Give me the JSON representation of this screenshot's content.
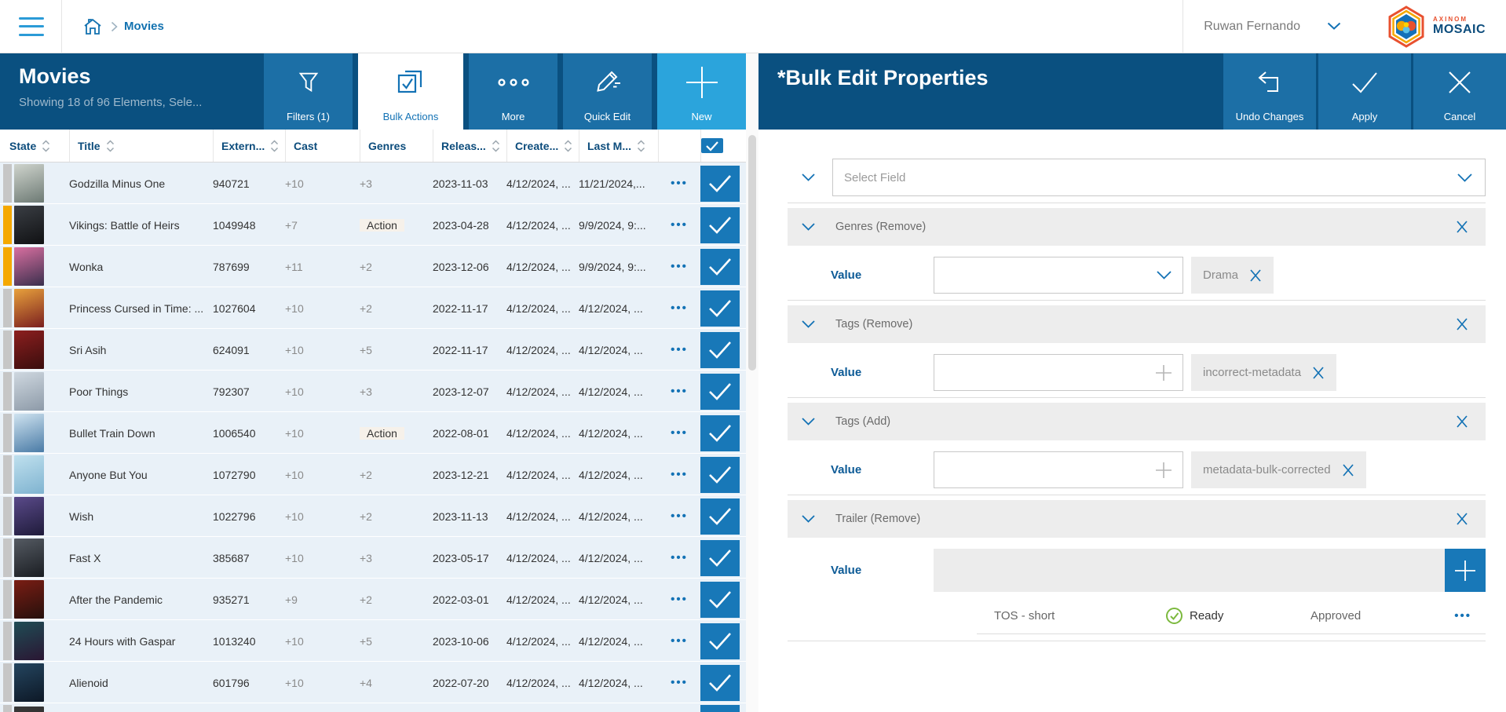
{
  "topbar": {
    "breadcrumb": "Movies",
    "user_name": "Ruwan Fernando",
    "logo": {
      "top": "AXINOM",
      "bottom": "MOSAIC"
    }
  },
  "colors": {
    "header_blue": "#0a5080",
    "button_blue": "#1c6fa6",
    "new_button_blue": "#2ba4dc",
    "accent_blue": "#1372b5",
    "checkbox_blue": "#1878b8",
    "selected_row_bg": "#e9f1f8",
    "state_warning": "#f5a800",
    "state_neutral": "#c6c6c6",
    "ready_green": "#7cb93e"
  },
  "left_panel": {
    "title": "Movies",
    "subtitle": "Showing 18 of 96 Elements, Sele...",
    "toolbar": [
      {
        "label": "Filters (1)",
        "icon": "filter-icon",
        "style": "mid"
      },
      {
        "label": "Bulk Actions",
        "icon": "bulk-actions-icon",
        "style": "active"
      },
      {
        "label": "More",
        "icon": "more-icon",
        "style": "mid"
      },
      {
        "label": "Quick Edit",
        "icon": "quick-edit-icon",
        "style": "mid"
      },
      {
        "label": "New",
        "icon": "plus-icon",
        "style": "light"
      }
    ],
    "table": {
      "columns": [
        {
          "label": "State",
          "sortable": true
        },
        {
          "label": "Title",
          "sortable": true
        },
        {
          "label": "Extern...",
          "sortable": true
        },
        {
          "label": "Cast",
          "sortable": false
        },
        {
          "label": "Genres",
          "sortable": false
        },
        {
          "label": "Releas...",
          "sortable": true
        },
        {
          "label": "Create...",
          "sortable": true
        },
        {
          "label": "Last M...",
          "sortable": true
        }
      ],
      "header_checkbox_checked": true,
      "rows": [
        {
          "title": "Godzilla Minus One",
          "external_id": "940721",
          "cast": "+10",
          "genres": "+3",
          "genre_is_chip": false,
          "released": "2023-11-03",
          "created": "4/12/2024, ...",
          "modified": "11/21/2024,...",
          "state_color": "#c6c6c6",
          "poster": [
            "#cfd4cd",
            "#6d7a74"
          ],
          "checked": true
        },
        {
          "title": "Vikings: Battle of Heirs",
          "external_id": "1049948",
          "cast": "+7",
          "genres": "Action",
          "genre_is_chip": true,
          "released": "2023-04-28",
          "created": "4/12/2024, ...",
          "modified": "9/9/2024, 9:...",
          "state_color": "#f5a800",
          "poster": [
            "#3a3e44",
            "#101113"
          ],
          "checked": true
        },
        {
          "title": "Wonka",
          "external_id": "787699",
          "cast": "+11",
          "genres": "+2",
          "genre_is_chip": false,
          "released": "2023-12-06",
          "created": "4/12/2024, ...",
          "modified": "9/9/2024, 9:...",
          "state_color": "#f5a800",
          "poster": [
            "#d96fa0",
            "#3a2f4d"
          ],
          "checked": true
        },
        {
          "title": "Princess Cursed in Time: ...",
          "external_id": "1027604",
          "cast": "+10",
          "genres": "+2",
          "genre_is_chip": false,
          "released": "2022-11-17",
          "created": "4/12/2024, ...",
          "modified": "4/12/2024, ...",
          "state_color": "#c6c6c6",
          "poster": [
            "#e8a13c",
            "#7a1f1f"
          ],
          "checked": true
        },
        {
          "title": "Sri Asih",
          "external_id": "624091",
          "cast": "+10",
          "genres": "+5",
          "genre_is_chip": false,
          "released": "2022-11-17",
          "created": "4/12/2024, ...",
          "modified": "4/12/2024, ...",
          "state_color": "#c6c6c6",
          "poster": [
            "#8c1f1f",
            "#3a0d0d"
          ],
          "checked": true
        },
        {
          "title": "Poor Things",
          "external_id": "792307",
          "cast": "+10",
          "genres": "+3",
          "genre_is_chip": false,
          "released": "2023-12-07",
          "created": "4/12/2024, ...",
          "modified": "4/12/2024, ...",
          "state_color": "#c6c6c6",
          "poster": [
            "#cfd8e0",
            "#8d9aa8"
          ],
          "checked": true
        },
        {
          "title": "Bullet Train Down",
          "external_id": "1006540",
          "cast": "+10",
          "genres": "Action",
          "genre_is_chip": true,
          "released": "2022-08-01",
          "created": "4/12/2024, ...",
          "modified": "4/12/2024, ...",
          "state_color": "#c6c6c6",
          "poster": [
            "#cfe3f0",
            "#4a7ba6"
          ],
          "checked": true
        },
        {
          "title": "Anyone But You",
          "external_id": "1072790",
          "cast": "+10",
          "genres": "+2",
          "genre_is_chip": false,
          "released": "2023-12-21",
          "created": "4/12/2024, ...",
          "modified": "4/12/2024, ...",
          "state_color": "#c6c6c6",
          "poster": [
            "#bfe0ee",
            "#7fb3d0"
          ],
          "checked": true
        },
        {
          "title": "Wish",
          "external_id": "1022796",
          "cast": "+10",
          "genres": "+2",
          "genre_is_chip": false,
          "released": "2023-11-13",
          "created": "4/12/2024, ...",
          "modified": "4/12/2024, ...",
          "state_color": "#c6c6c6",
          "poster": [
            "#5a4a8a",
            "#1f1b3a"
          ],
          "checked": true
        },
        {
          "title": "Fast X",
          "external_id": "385687",
          "cast": "+10",
          "genres": "+3",
          "genre_is_chip": false,
          "released": "2023-05-17",
          "created": "4/12/2024, ...",
          "modified": "4/12/2024, ...",
          "state_color": "#c6c6c6",
          "poster": [
            "#555b63",
            "#1a1d22"
          ],
          "checked": true
        },
        {
          "title": "After the Pandemic",
          "external_id": "935271",
          "cast": "+9",
          "genres": "+2",
          "genre_is_chip": false,
          "released": "2022-03-01",
          "created": "4/12/2024, ...",
          "modified": "4/12/2024, ...",
          "state_color": "#c6c6c6",
          "poster": [
            "#7a1d14",
            "#26100c"
          ],
          "checked": true
        },
        {
          "title": "24 Hours with Gaspar",
          "external_id": "1013240",
          "cast": "+10",
          "genres": "+5",
          "genre_is_chip": false,
          "released": "2023-10-06",
          "created": "4/12/2024, ...",
          "modified": "4/12/2024, ...",
          "state_color": "#c6c6c6",
          "poster": [
            "#1f4d55",
            "#2a1633"
          ],
          "checked": true
        },
        {
          "title": "Alienoid",
          "external_id": "601796",
          "cast": "+10",
          "genres": "+4",
          "genre_is_chip": false,
          "released": "2022-07-20",
          "created": "4/12/2024, ...",
          "modified": "4/12/2024, ...",
          "state_color": "#c6c6c6",
          "poster": [
            "#24455f",
            "#0d1826"
          ],
          "checked": true
        }
      ],
      "partial_row": {
        "state_color": "#c6c6c6",
        "poster": [
          "#3a3a3a",
          "#222222"
        ],
        "checked": true
      }
    }
  },
  "right_panel": {
    "title": "*Bulk Edit Properties",
    "actions": [
      {
        "label": "Undo Changes",
        "icon": "undo-icon"
      },
      {
        "label": "Apply",
        "icon": "check-icon"
      },
      {
        "label": "Cancel",
        "icon": "close-icon"
      }
    ],
    "field_selector": {
      "placeholder": "Select Field"
    },
    "sections": [
      {
        "label": "Genres (Remove)",
        "value_label": "Value",
        "control": "select",
        "chips": [
          "Drama"
        ]
      },
      {
        "label": "Tags (Remove)",
        "value_label": "Value",
        "control": "tag-input",
        "chips": [
          "incorrect-metadata"
        ]
      },
      {
        "label": "Tags (Add)",
        "value_label": "Value",
        "control": "tag-input",
        "chips": [
          "metadata-bulk-corrected"
        ]
      },
      {
        "label": "Trailer (Remove)",
        "value_label": "Value",
        "control": "media-list",
        "media": [
          {
            "name": "TOS - short",
            "status": "Ready",
            "approval": "Approved"
          }
        ]
      }
    ]
  }
}
